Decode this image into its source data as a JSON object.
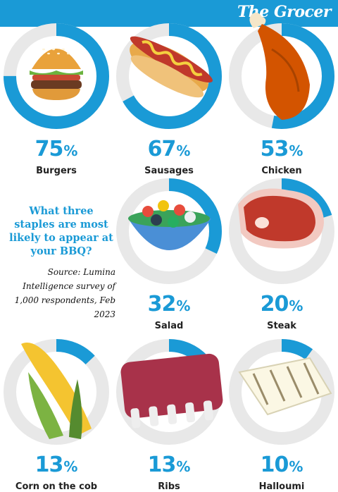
{
  "brand": {
    "name": "The Grocer"
  },
  "colors": {
    "accent": "#1a9ad6",
    "track": "#e8e8e8",
    "background": "#ffffff"
  },
  "intro": {
    "question": "What three staples are most likely to appear at your BBQ?",
    "source": "Source: Lumina Intelligence survey of 1,000 respondents, Feb 2023"
  },
  "chart_data": {
    "type": "donut",
    "unit": "%",
    "categories": [
      "Burgers",
      "Sausages",
      "Chicken",
      "Salad",
      "Steak",
      "Corn on the cob",
      "Ribs",
      "Halloumi"
    ],
    "values": [
      75,
      67,
      53,
      32,
      20,
      13,
      13,
      10
    ],
    "icons": [
      "burger-icon",
      "hotdog-icon",
      "chicken-leg-icon",
      "salad-bowl-icon",
      "steak-icon",
      "corn-icon",
      "ribs-icon",
      "halloumi-icon"
    ]
  }
}
